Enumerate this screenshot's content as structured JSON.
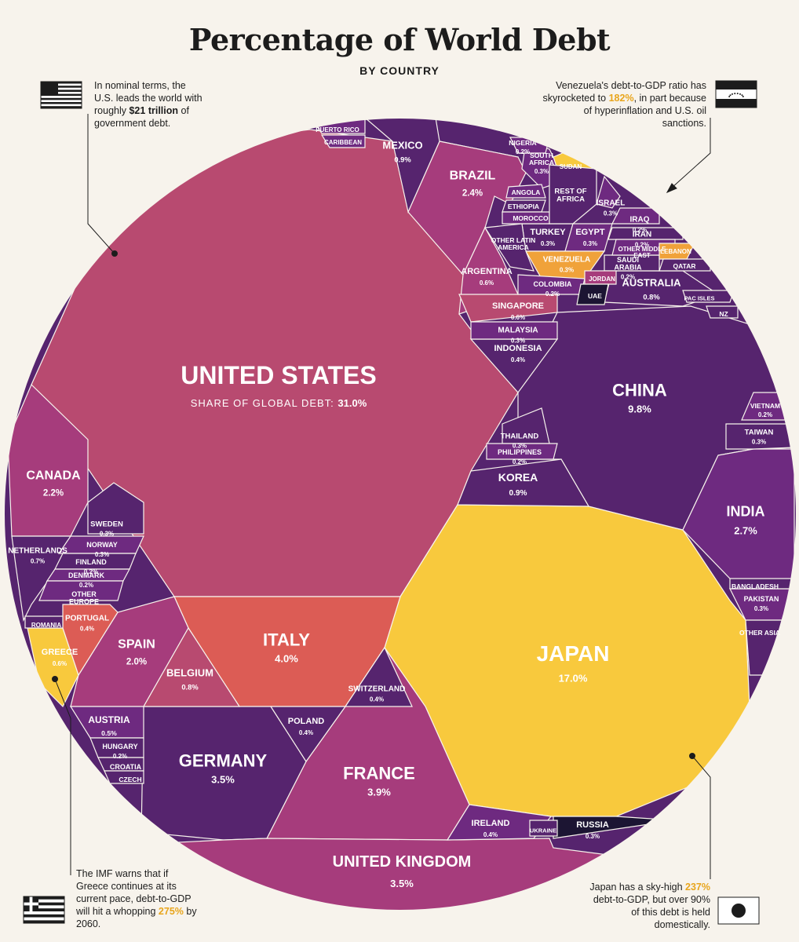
{
  "header": {
    "title": "Percentage of World Debt",
    "subtitle": "BY COUNTRY"
  },
  "notes": {
    "us": {
      "text_before": "In nominal terms, the U.S. leads the world with roughly ",
      "bold": "$21 trillion",
      "text_after": " of government debt."
    },
    "venezuela": {
      "text_before": "Venezuela's debt-to-GDP ratio has skyrocketed to ",
      "highlight": "182%",
      "text_after": ", in part because of hyperinflation and U.S. oil sanctions."
    },
    "greece": {
      "text_before": "The IMF warns that if Greece continues at its current pace, debt-to-GDP will hit a whopping ",
      "highlight": "275%",
      "text_after": " by 2060."
    },
    "japan": {
      "text_before": "Japan has a sky-high ",
      "highlight": "237%",
      "text_after": " debt-to-GDP, but over 90% of this debt is held domestically."
    }
  },
  "us_caption": "SHARE OF GLOBAL DEBT:",
  "colors": {
    "purple_dark": "#56246e",
    "purple": "#6e2a80",
    "magenta": "#a63c7c",
    "rose": "#b84a70",
    "coral": "#dc5c55",
    "yellow": "#f8c93d",
    "orange": "#f0a23a",
    "navy": "#1c1533",
    "background": "#f7f3ec"
  },
  "chart_data": {
    "type": "voronoi-treemap",
    "unit": "%",
    "title": "Percentage of World Debt",
    "subtitle": "BY COUNTRY",
    "cells": [
      {
        "name": "UNITED STATES",
        "value": 31.0
      },
      {
        "name": "JAPAN",
        "value": 17.0
      },
      {
        "name": "CHINA",
        "value": 9.8
      },
      {
        "name": "ITALY",
        "value": 4.0
      },
      {
        "name": "FRANCE",
        "value": 3.9
      },
      {
        "name": "GERMANY",
        "value": 3.5
      },
      {
        "name": "UNITED KINGDOM",
        "value": 3.5
      },
      {
        "name": "INDIA",
        "value": 2.7
      },
      {
        "name": "BRAZIL",
        "value": 2.4
      },
      {
        "name": "CANADA",
        "value": 2.2
      },
      {
        "name": "SPAIN",
        "value": 2.0
      },
      {
        "name": "MEXICO",
        "value": 0.9
      },
      {
        "name": "KOREA",
        "value": 0.9
      },
      {
        "name": "AUSTRALIA",
        "value": 0.8
      },
      {
        "name": "BELGIUM",
        "value": 0.8
      },
      {
        "name": "NETHERLANDS",
        "value": 0.7
      },
      {
        "name": "ARGENTINA",
        "value": 0.6
      },
      {
        "name": "SINGAPORE",
        "value": 0.6
      },
      {
        "name": "GREECE",
        "value": 0.6
      },
      {
        "name": "AUSTRIA",
        "value": 0.5
      },
      {
        "name": "INDONESIA",
        "value": 0.4
      },
      {
        "name": "PORTUGAL",
        "value": 0.4
      },
      {
        "name": "SWITZERLAND",
        "value": 0.4
      },
      {
        "name": "POLAND",
        "value": 0.4
      },
      {
        "name": "IRELAND",
        "value": 0.4
      },
      {
        "name": "SOUTH AFRICA",
        "value": 0.3
      },
      {
        "name": "ISRAEL",
        "value": 0.3
      },
      {
        "name": "TURKEY",
        "value": 0.3
      },
      {
        "name": "EGYPT",
        "value": 0.3
      },
      {
        "name": "VENEZUELA",
        "value": 0.3
      },
      {
        "name": "MALAYSIA",
        "value": 0.3
      },
      {
        "name": "THAILAND",
        "value": 0.3
      },
      {
        "name": "SWEDEN",
        "value": 0.3
      },
      {
        "name": "NORWAY",
        "value": 0.3
      },
      {
        "name": "TAIWAN",
        "value": 0.3
      },
      {
        "name": "PAKISTAN",
        "value": 0.3
      },
      {
        "name": "RUSSIA",
        "value": 0.3
      },
      {
        "name": "NIGERIA",
        "value": 0.2
      },
      {
        "name": "IRAQ",
        "value": 0.2
      },
      {
        "name": "IRAN",
        "value": 0.2
      },
      {
        "name": "SAUDI ARABIA",
        "value": 0.2
      },
      {
        "name": "COLOMBIA",
        "value": 0.2
      },
      {
        "name": "PHILIPPINES",
        "value": 0.2
      },
      {
        "name": "VIETNAM",
        "value": 0.2
      },
      {
        "name": "FINLAND",
        "value": 0.2
      },
      {
        "name": "DENMARK",
        "value": 0.2
      },
      {
        "name": "HUNGARY",
        "value": 0.2
      },
      {
        "name": "PUERTO RICO",
        "value": null
      },
      {
        "name": "CARIBBEAN",
        "value": null
      },
      {
        "name": "SUDAN",
        "value": null
      },
      {
        "name": "ANGOLA",
        "value": null
      },
      {
        "name": "ETHIOPIA",
        "value": null
      },
      {
        "name": "MOROCCO",
        "value": null
      },
      {
        "name": "REST OF AFRICA",
        "value": null
      },
      {
        "name": "OTHER LATIN AMERICA",
        "value": null
      },
      {
        "name": "OTHER MIDDLE EAST",
        "value": null
      },
      {
        "name": "LEBANON",
        "value": null
      },
      {
        "name": "QATAR",
        "value": null
      },
      {
        "name": "JORDAN",
        "value": null
      },
      {
        "name": "UAE",
        "value": null
      },
      {
        "name": "PAC ISLES",
        "value": null
      },
      {
        "name": "NZ",
        "value": null
      },
      {
        "name": "BANGLADESH",
        "value": null
      },
      {
        "name": "OTHER ASIA",
        "value": null
      },
      {
        "name": "ROMANIA",
        "value": null
      },
      {
        "name": "OTHER EUROPE",
        "value": null
      },
      {
        "name": "CROATIA",
        "value": null
      },
      {
        "name": "CZECH",
        "value": null
      },
      {
        "name": "UKRAINE",
        "value": null
      }
    ]
  }
}
